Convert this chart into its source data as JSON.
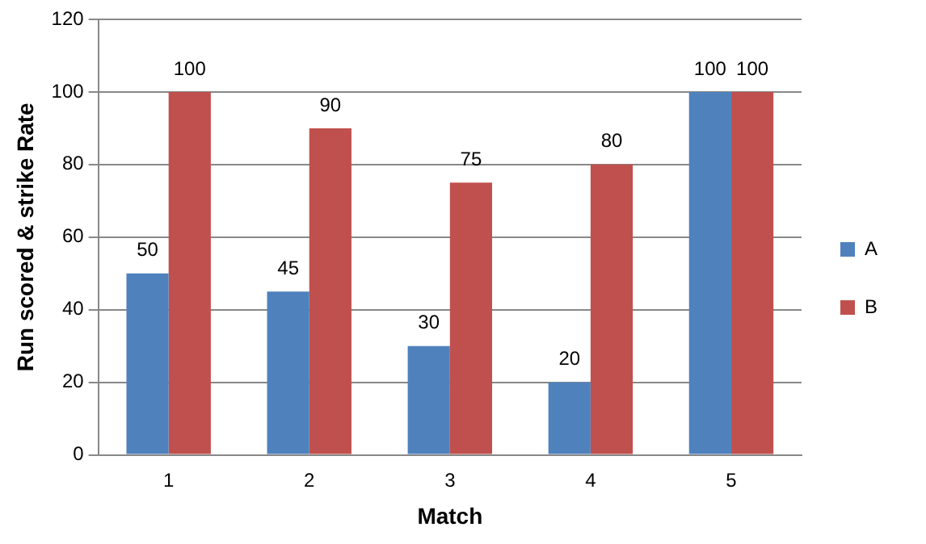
{
  "chart_data": {
    "type": "bar",
    "xlabel": "Match",
    "ylabel": "Run scored & strike Rate",
    "categories": [
      "1",
      "2",
      "3",
      "4",
      "5"
    ],
    "series": [
      {
        "name": "A",
        "color": "#4f81bd",
        "values": [
          50,
          45,
          30,
          20,
          100
        ]
      },
      {
        "name": "B",
        "color": "#c0504d",
        "values": [
          100,
          90,
          75,
          80,
          100
        ]
      }
    ],
    "ylim": [
      0,
      120
    ],
    "yticks": [
      0,
      20,
      40,
      60,
      80,
      100,
      120
    ],
    "grid": "y",
    "legend": "right",
    "data_labels": true
  }
}
